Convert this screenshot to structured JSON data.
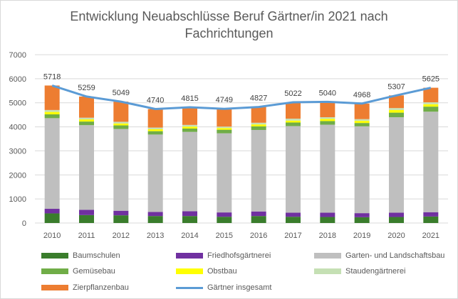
{
  "chart_data": {
    "type": "bar",
    "stacked": true,
    "title_lines": [
      "Entwicklung Neuabschlüsse  Beruf Gärtner/in 2021 nach",
      "Fachrichtungen"
    ],
    "categories": [
      "2010",
      "2011",
      "2012",
      "2013",
      "2014",
      "2015",
      "2016",
      "2017",
      "2018",
      "2019",
      "2020",
      "2021"
    ],
    "ylim": [
      0,
      7000
    ],
    "yticks": [
      0,
      1000,
      2000,
      3000,
      4000,
      5000,
      6000,
      7000
    ],
    "grid": true,
    "legend_position": "bottom",
    "series": [
      {
        "name": "Baumschulen",
        "color": "#3a7d2c",
        "values": [
          400,
          330,
          320,
          290,
          290,
          260,
          290,
          260,
          250,
          240,
          250,
          270
        ]
      },
      {
        "name": "Friedhofsgärtnerei",
        "color": "#7030a0",
        "values": [
          190,
          220,
          190,
          170,
          200,
          180,
          190,
          170,
          180,
          170,
          180,
          180
        ]
      },
      {
        "name": "Garten- und Landschaftsbau",
        "color": "#bfbfbf",
        "values": [
          3770,
          3520,
          3400,
          3220,
          3300,
          3290,
          3390,
          3600,
          3660,
          3610,
          3970,
          4180
        ]
      },
      {
        "name": "Gemüsebau",
        "color": "#70ad47",
        "values": [
          160,
          150,
          150,
          140,
          140,
          150,
          150,
          150,
          150,
          140,
          190,
          210
        ]
      },
      {
        "name": "Obstbau",
        "color": "#ffff00",
        "values": [
          100,
          90,
          80,
          80,
          80,
          70,
          80,
          80,
          90,
          90,
          110,
          100
        ]
      },
      {
        "name": "Staudengärtnerei",
        "color": "#c5e0b4",
        "values": [
          80,
          70,
          70,
          70,
          70,
          60,
          70,
          80,
          70,
          70,
          80,
          80
        ]
      },
      {
        "name": "Zierpflanzenbau",
        "color": "#ed7d31",
        "values": [
          1018,
          879,
          839,
          770,
          735,
          739,
          657,
          682,
          640,
          648,
          527,
          605
        ]
      }
    ],
    "line_series": {
      "name": "Gärtner insgesamt",
      "color": "#5b9bd5",
      "values": [
        5718,
        5259,
        5049,
        4740,
        4815,
        4749,
        4827,
        5022,
        5040,
        4968,
        5307,
        5625
      ]
    }
  }
}
